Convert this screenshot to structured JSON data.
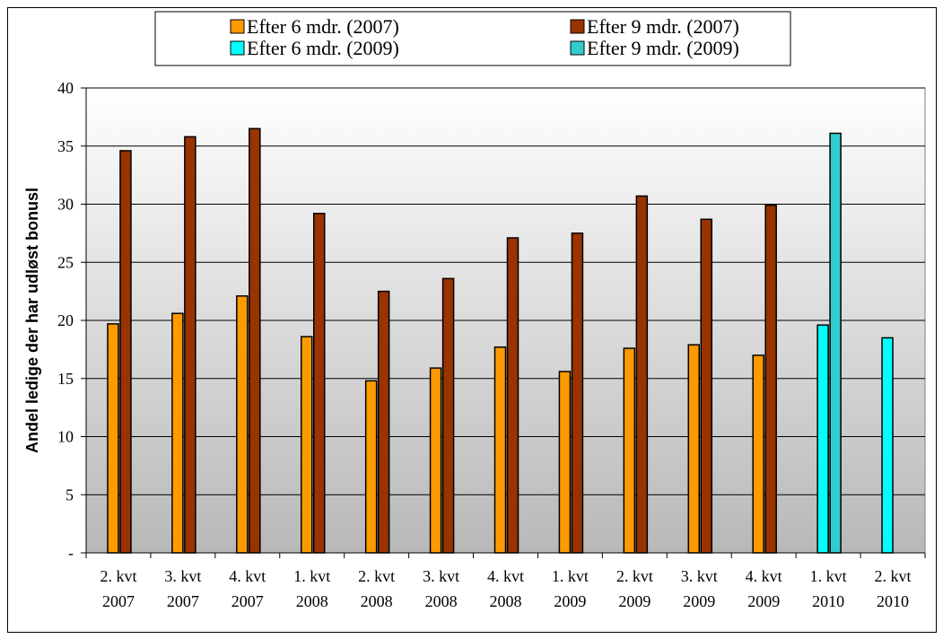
{
  "chart_data": {
    "type": "bar",
    "title": "",
    "xlabel": "",
    "ylabel": "Andel ledige der har udløst bonusl",
    "ylim": [
      0,
      40
    ],
    "yticks": [
      0,
      5,
      10,
      15,
      20,
      25,
      30,
      35,
      40
    ],
    "ytick_labels": [
      "-",
      "5",
      "10",
      "15",
      "20",
      "25",
      "30",
      "35",
      "40"
    ],
    "grid": true,
    "legend_position": "top",
    "categories": [
      [
        "2. kvt",
        "2007"
      ],
      [
        "3. kvt",
        "2007"
      ],
      [
        "4. kvt",
        "2007"
      ],
      [
        "1. kvt",
        "2008"
      ],
      [
        "2. kvt",
        "2008"
      ],
      [
        "3. kvt",
        "2008"
      ],
      [
        "4. kvt",
        "2008"
      ],
      [
        "1. kvt",
        "2009"
      ],
      [
        "2. kvt",
        "2009"
      ],
      [
        "3. kvt",
        "2009"
      ],
      [
        "4. kvt",
        "2009"
      ],
      [
        "1. kvt",
        "2010"
      ],
      [
        "2. kvt",
        "2010"
      ]
    ],
    "series": [
      {
        "name": "Efter 6 mdr. (2007)",
        "color": "#FF9900",
        "values": [
          19.7,
          20.6,
          22.1,
          18.6,
          14.8,
          15.9,
          17.7,
          15.6,
          17.6,
          17.9,
          17.0,
          null,
          null
        ]
      },
      {
        "name": "Efter 9 mdr. (2007)",
        "color": "#993300",
        "values": [
          34.6,
          35.8,
          36.5,
          29.2,
          22.5,
          23.6,
          27.1,
          27.5,
          30.7,
          28.7,
          29.9,
          null,
          null
        ]
      },
      {
        "name": "Efter 6 mdr. (2009)",
        "color": "#00FFFF",
        "values": [
          null,
          null,
          null,
          null,
          null,
          null,
          null,
          null,
          null,
          null,
          null,
          19.6,
          18.5
        ]
      },
      {
        "name": "Efter 9 mdr. (2009)",
        "color": "#33CCCC",
        "values": [
          null,
          null,
          null,
          null,
          null,
          null,
          null,
          null,
          null,
          null,
          null,
          36.1,
          null
        ]
      }
    ]
  }
}
